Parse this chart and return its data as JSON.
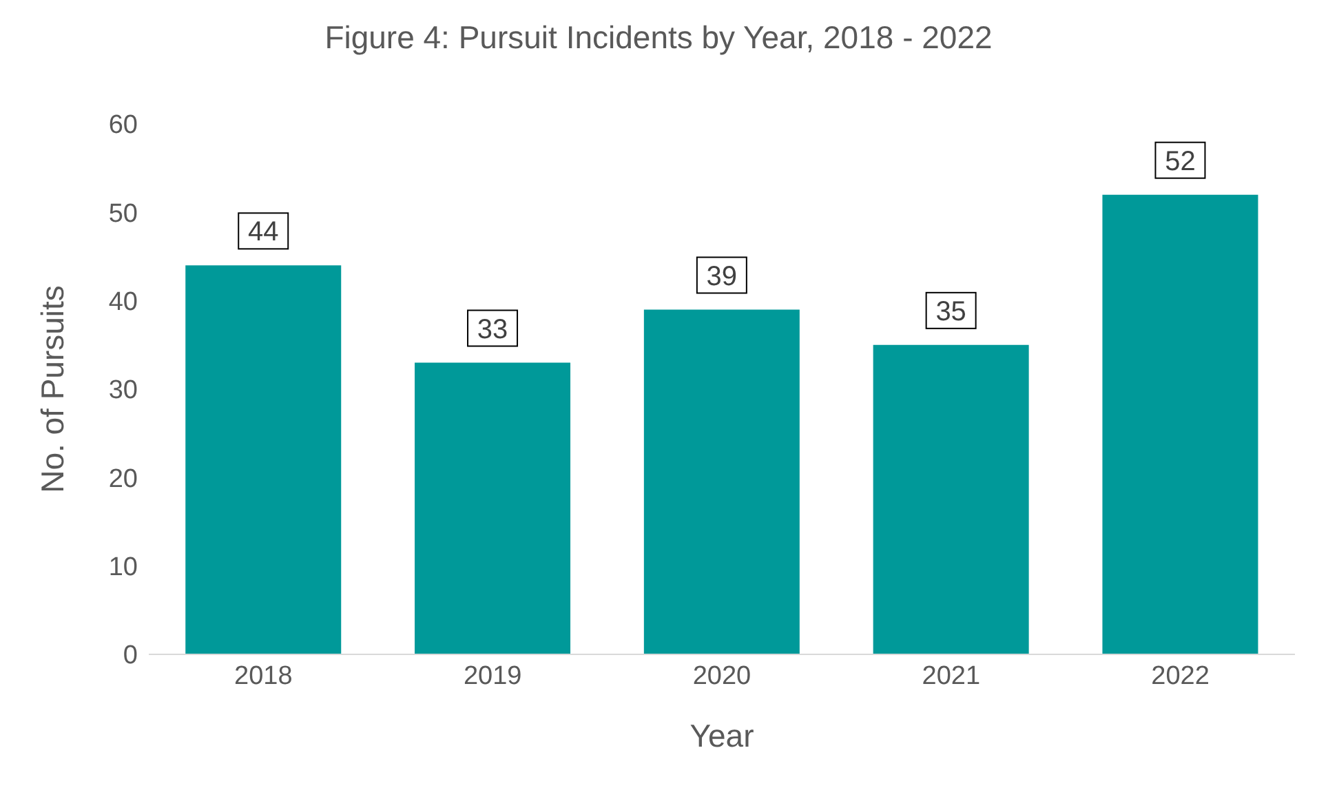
{
  "chart_data": {
    "type": "bar",
    "title": "Figure 4: Pursuit Incidents by Year, 2018 - 2022",
    "xlabel": "Year",
    "ylabel": "No. of Pursuits",
    "categories": [
      "2018",
      "2019",
      "2020",
      "2021",
      "2022"
    ],
    "values": [
      44,
      33,
      39,
      35,
      52
    ],
    "color": "#009999",
    "ylim": [
      0,
      60
    ],
    "yticks": [
      0,
      10,
      20,
      30,
      40,
      50,
      60
    ],
    "grid": false,
    "data_labels": true
  }
}
